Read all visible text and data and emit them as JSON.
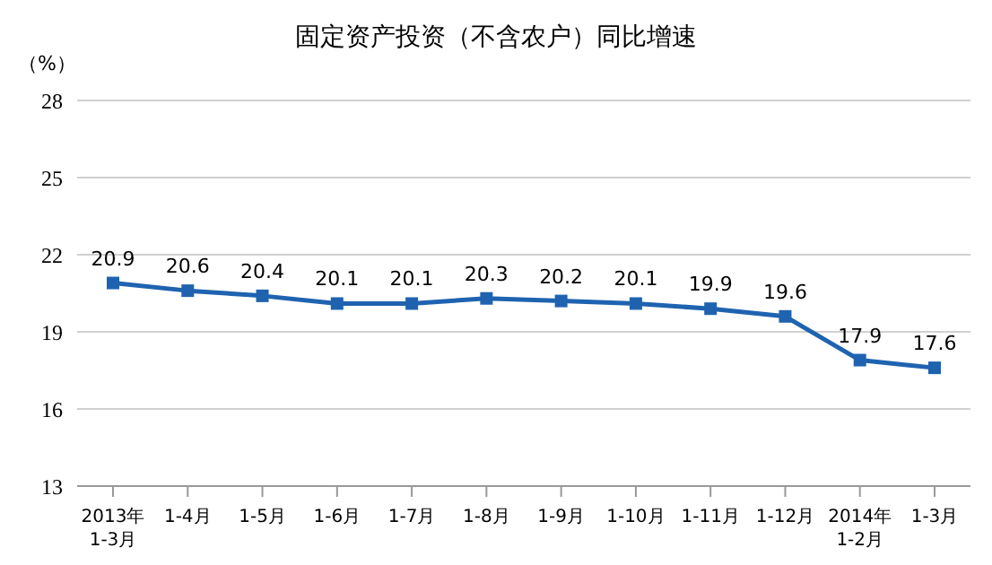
{
  "chart_data": {
    "type": "line",
    "title": "固定资产投资（不含农户）同比增速",
    "ylabel": "（%）",
    "categories": [
      "2013年\n1-3月",
      "1-4月",
      "1-5月",
      "1-6月",
      "1-7月",
      "1-8月",
      "1-9月",
      "1-10月",
      "1-11月",
      "1-12月",
      "2014年\n1-2月",
      "1-3月"
    ],
    "series": [
      {
        "color": "#1f63b0",
        "values": [
          20.9,
          20.6,
          20.4,
          20.1,
          20.1,
          20.3,
          20.2,
          20.1,
          19.9,
          19.6,
          17.9,
          17.6
        ]
      }
    ],
    "ylim": [
      13,
      28
    ],
    "yticks": [
      13,
      16,
      19,
      22,
      25,
      28
    ],
    "grid": "y",
    "marker": "square",
    "line_style": "solid",
    "data_labels": true,
    "legend": false
  }
}
